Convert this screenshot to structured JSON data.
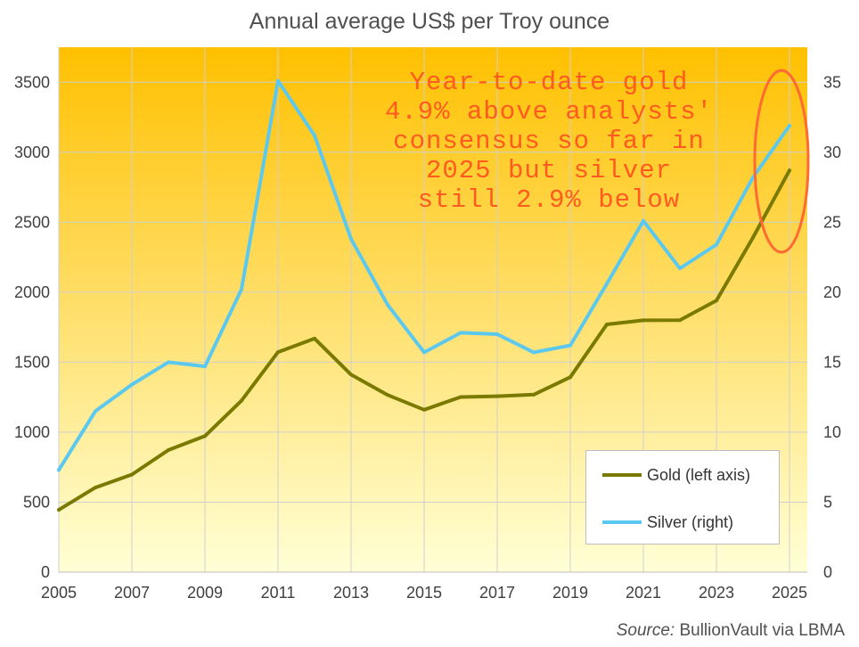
{
  "chart_data": {
    "type": "line",
    "title": "Annual average US$ per Troy ounce",
    "x": [
      2005,
      2006,
      2007,
      2008,
      2009,
      2010,
      2011,
      2012,
      2013,
      2014,
      2015,
      2016,
      2017,
      2018,
      2019,
      2020,
      2021,
      2022,
      2023,
      2024,
      2025
    ],
    "x_tick_labels": [
      "2005",
      "2007",
      "2009",
      "2011",
      "2013",
      "2015",
      "2017",
      "2019",
      "2021",
      "2023",
      "2025"
    ],
    "left_axis": {
      "ylim": [
        0,
        3750
      ],
      "ticks": [
        "0",
        "500",
        "1000",
        "1500",
        "2000",
        "2500",
        "3000",
        "3500"
      ]
    },
    "right_axis": {
      "ylim": [
        0,
        37.5
      ],
      "ticks": [
        "0",
        "5",
        "10",
        "15",
        "20",
        "25",
        "30",
        "35"
      ]
    },
    "series": [
      {
        "name": "Gold (left axis)",
        "axis": "left",
        "color": "#7a7a00",
        "values": [
          445,
          604,
          697,
          872,
          972,
          1225,
          1572,
          1669,
          1411,
          1266,
          1160,
          1251,
          1257,
          1268,
          1393,
          1770,
          1799,
          1800,
          1940,
          2390,
          2870
        ]
      },
      {
        "name": "Silver (right)",
        "axis": "right",
        "color": "#5bc8f0",
        "values": [
          7.3,
          11.5,
          13.4,
          15.0,
          14.7,
          20.2,
          35.1,
          31.2,
          23.8,
          19.1,
          15.7,
          17.1,
          17.0,
          15.7,
          16.2,
          20.6,
          25.1,
          21.7,
          23.4,
          28.2,
          31.9
        ]
      }
    ],
    "grid": true,
    "legend_position": "bottom-right",
    "annotation": [
      "Year-to-date gold",
      "4.9% above analysts'",
      "consensus so far in",
      "2025 but silver",
      "still 2.9% below"
    ],
    "source_label": "Source:",
    "source_text": "BullionVault via LBMA",
    "colors": {
      "bg_top": "#ffc000",
      "bg_bottom": "#ffffd6",
      "annotation": "#ff5a1f",
      "highlight_ellipse": "#ff6a33"
    }
  }
}
